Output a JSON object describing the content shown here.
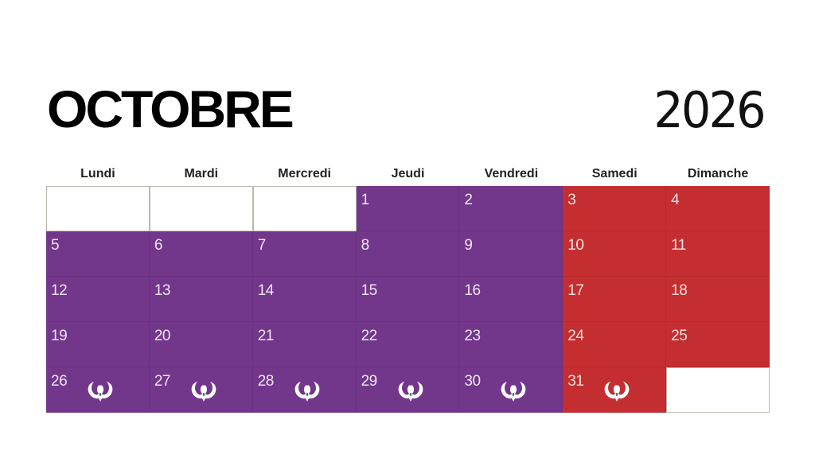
{
  "header": {
    "month": "OCTOBRE",
    "year": "2026"
  },
  "colors": {
    "weekday": "#72368b",
    "weekend": "#c52e31",
    "empty": "#ffffff"
  },
  "weekdays": [
    "Lundi",
    "Mardi",
    "Mercredi",
    "Jeudi",
    "Vendredi",
    "Samedi",
    "Dimanche"
  ],
  "weeks": [
    [
      {
        "day": ""
      },
      {
        "day": ""
      },
      {
        "day": ""
      },
      {
        "day": "1"
      },
      {
        "day": "2"
      },
      {
        "day": "3"
      },
      {
        "day": "4"
      }
    ],
    [
      {
        "day": "5"
      },
      {
        "day": "6"
      },
      {
        "day": "7"
      },
      {
        "day": "8"
      },
      {
        "day": "9"
      },
      {
        "day": "10"
      },
      {
        "day": "11"
      }
    ],
    [
      {
        "day": "12"
      },
      {
        "day": "13"
      },
      {
        "day": "14"
      },
      {
        "day": "15"
      },
      {
        "day": "16"
      },
      {
        "day": "17"
      },
      {
        "day": "18"
      }
    ],
    [
      {
        "day": "19"
      },
      {
        "day": "20"
      },
      {
        "day": "21"
      },
      {
        "day": "22"
      },
      {
        "day": "23"
      },
      {
        "day": "24"
      },
      {
        "day": "25"
      }
    ],
    [
      {
        "day": "26",
        "icon": "phoenix-emblem-icon"
      },
      {
        "day": "27",
        "icon": "phoenix-emblem-icon"
      },
      {
        "day": "28",
        "icon": "phoenix-emblem-icon"
      },
      {
        "day": "29",
        "icon": "phoenix-emblem-icon"
      },
      {
        "day": "30",
        "icon": "phoenix-emblem-icon"
      },
      {
        "day": "31",
        "icon": "phoenix-emblem-icon"
      },
      {
        "day": ""
      }
    ]
  ]
}
